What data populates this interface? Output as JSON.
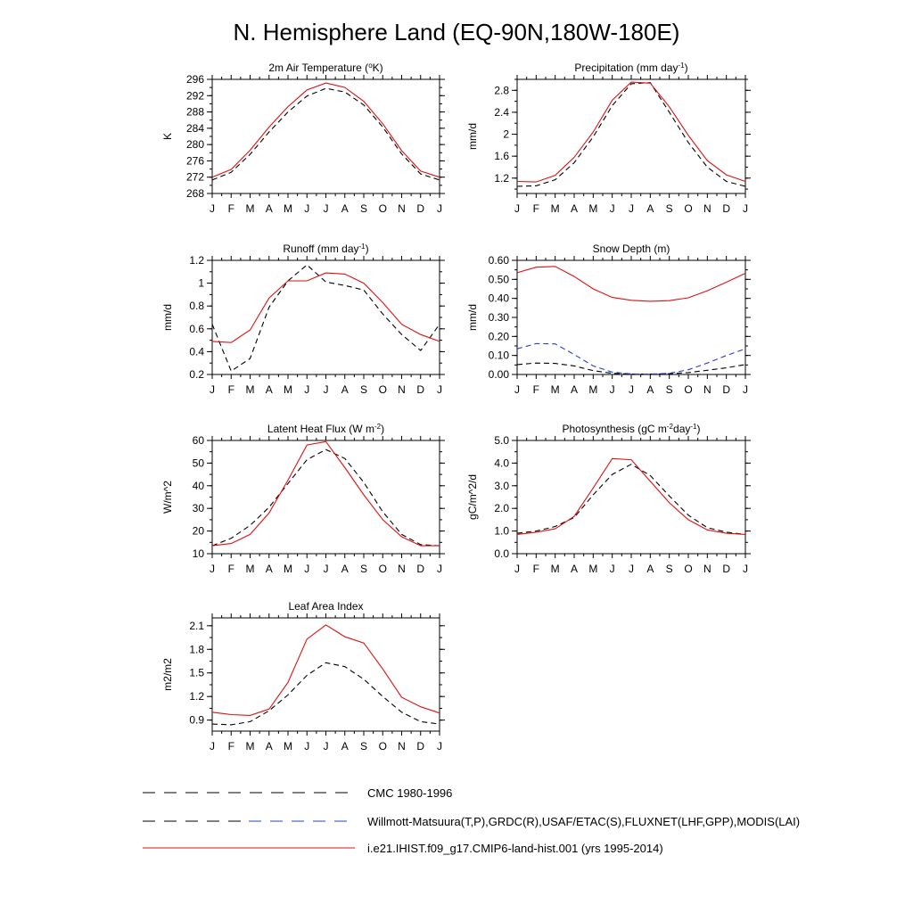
{
  "title": "N. Hemisphere Land (EQ-90N,180W-180E)",
  "months": [
    "J",
    "F",
    "M",
    "A",
    "M",
    "J",
    "J",
    "A",
    "S",
    "O",
    "N",
    "D",
    "J"
  ],
  "colors": {
    "obs": "#000000",
    "obs_secondary": "#1f3fd0",
    "model": "#e01010"
  },
  "legend": [
    {
      "label": "CMC 1980-1996",
      "style": "cmc"
    },
    {
      "label": "Willmott-Matsuura(T,P),GRDC(R),USAF/ETAC(S),FLUXNET(LHF,GPP),MODIS(LAI)",
      "style": "obs"
    },
    {
      "label": "i.e21.IHIST.f09_g17.CMIP6-land-hist.001 (yrs 1995-2014)",
      "style": "model"
    }
  ],
  "chart_data": [
    {
      "type": "line",
      "title": "2m Air Temperature (",
      "title_parts": [
        {
          "t": "2m Air Temperature ("
        },
        {
          "t": "o",
          "sup": true
        },
        {
          "t": "K)"
        }
      ],
      "ylabel": "K",
      "ylim": [
        268,
        296
      ],
      "yticks": [
        268,
        272,
        276,
        280,
        284,
        288,
        292,
        296
      ],
      "yminor": 2,
      "series": [
        {
          "style": "dash",
          "color": "obs",
          "values": [
            271.3,
            273.2,
            277.6,
            283.1,
            288.0,
            291.9,
            293.8,
            292.9,
            289.7,
            284.3,
            277.7,
            272.8,
            271.3
          ]
        },
        {
          "style": "solid",
          "color": "model",
          "values": [
            272.0,
            273.9,
            278.6,
            284.3,
            289.3,
            293.4,
            295.1,
            294.0,
            290.6,
            285.1,
            278.5,
            273.5,
            272.0
          ]
        }
      ]
    },
    {
      "type": "line",
      "title": "Precipitation (mm day",
      "title_parts": [
        {
          "t": "Precipitation (mm day"
        },
        {
          "t": "-1",
          "sup": true
        },
        {
          "t": ")"
        }
      ],
      "ylabel": "mm/d",
      "ylim": [
        0.92,
        3.0
      ],
      "yticks": [
        1.2,
        1.6,
        2.0,
        2.4,
        2.8
      ],
      "yminor": 0.2,
      "series": [
        {
          "style": "dash",
          "color": "obs",
          "values": [
            1.05,
            1.06,
            1.17,
            1.48,
            1.95,
            2.52,
            2.92,
            2.94,
            2.4,
            1.85,
            1.4,
            1.14,
            1.05
          ]
        },
        {
          "style": "solid",
          "color": "model",
          "values": [
            1.14,
            1.13,
            1.25,
            1.58,
            2.04,
            2.62,
            2.95,
            2.93,
            2.5,
            1.98,
            1.52,
            1.26,
            1.14
          ]
        }
      ]
    },
    {
      "type": "line",
      "title": "Runoff (mm day",
      "title_parts": [
        {
          "t": "Runoff (mm day"
        },
        {
          "t": "-1",
          "sup": true
        },
        {
          "t": ")"
        }
      ],
      "ylabel": "mm/d",
      "ylim": [
        0.2,
        1.2
      ],
      "yticks": [
        0.2,
        0.4,
        0.6,
        0.8,
        1.0,
        1.2
      ],
      "yminor": 0.1,
      "series": [
        {
          "style": "dash",
          "color": "obs",
          "values": [
            0.64,
            0.23,
            0.34,
            0.79,
            1.02,
            1.16,
            1.01,
            0.98,
            0.94,
            0.73,
            0.55,
            0.41,
            0.64
          ]
        },
        {
          "style": "solid",
          "color": "model",
          "values": [
            0.49,
            0.48,
            0.59,
            0.87,
            1.02,
            1.02,
            1.09,
            1.08,
            1.0,
            0.83,
            0.64,
            0.55,
            0.49
          ]
        }
      ]
    },
    {
      "type": "line",
      "title": "Snow Depth (m)",
      "title_parts": [
        {
          "t": "Snow Depth (m)"
        }
      ],
      "ylabel": "mm/d",
      "ylim": [
        0.0,
        0.6
      ],
      "yticks": [
        0.0,
        0.1,
        0.2,
        0.3,
        0.4,
        0.5,
        0.6
      ],
      "yticklabels": [
        "0.00",
        "0.10",
        "0.20",
        "0.30",
        "0.40",
        "0.50",
        "0.60"
      ],
      "yminor": 0.05,
      "series": [
        {
          "style": "dash",
          "color": "obs",
          "values": [
            0.052,
            0.06,
            0.058,
            0.045,
            0.02,
            0.006,
            0.002,
            0.002,
            0.004,
            0.01,
            0.022,
            0.035,
            0.052
          ]
        },
        {
          "style": "dash",
          "color": "obs_secondary",
          "values": [
            0.135,
            0.162,
            0.161,
            0.105,
            0.045,
            0.012,
            0.003,
            0.002,
            0.006,
            0.025,
            0.06,
            0.1,
            0.135
          ]
        },
        {
          "style": "solid",
          "color": "model",
          "values": [
            0.535,
            0.564,
            0.568,
            0.515,
            0.45,
            0.405,
            0.39,
            0.385,
            0.388,
            0.403,
            0.44,
            0.485,
            0.532
          ]
        }
      ]
    },
    {
      "type": "line",
      "title": "Latent Heat Flux (W m",
      "title_parts": [
        {
          "t": "Latent Heat Flux (W m"
        },
        {
          "t": "-2",
          "sup": true
        },
        {
          "t": ")"
        }
      ],
      "ylabel": "W/m^2",
      "ylim": [
        10,
        60
      ],
      "yticks": [
        10,
        20,
        30,
        40,
        50,
        60
      ],
      "yminor": 5,
      "series": [
        {
          "style": "dash",
          "color": "obs",
          "values": [
            13.5,
            16.8,
            22.5,
            30.5,
            41.0,
            51.5,
            56.0,
            52.0,
            41.5,
            28.5,
            18.5,
            14.0,
            13.5
          ]
        },
        {
          "style": "solid",
          "color": "model",
          "values": [
            13.5,
            14.5,
            18.5,
            28.0,
            42.5,
            58.0,
            59.5,
            48.0,
            36.0,
            25.0,
            17.5,
            13.5,
            13.5
          ]
        }
      ]
    },
    {
      "type": "line",
      "title": "Photosynthesis (gC m",
      "title_parts": [
        {
          "t": "Photosynthesis (gC m"
        },
        {
          "t": "-2",
          "sup": true
        },
        {
          "t": "day"
        },
        {
          "t": "-1",
          "sup": true
        },
        {
          "t": ")"
        }
      ],
      "ylabel": "gC/m^2/d",
      "ylim": [
        0.0,
        5.0
      ],
      "yticks": [
        0.0,
        1.0,
        2.0,
        3.0,
        4.0,
        5.0
      ],
      "yticklabels": [
        "0.0",
        "1.0",
        "2.0",
        "3.0",
        "4.0",
        "5.0"
      ],
      "yminor": 0.5,
      "series": [
        {
          "style": "dash",
          "color": "obs",
          "values": [
            0.9,
            1.0,
            1.2,
            1.6,
            2.6,
            3.5,
            3.95,
            3.45,
            2.55,
            1.7,
            1.15,
            0.95,
            0.85
          ]
        },
        {
          "style": "solid",
          "color": "model",
          "values": [
            0.85,
            0.95,
            1.1,
            1.65,
            2.9,
            4.2,
            4.15,
            3.2,
            2.25,
            1.5,
            1.05,
            0.9,
            0.85
          ]
        }
      ]
    },
    {
      "type": "line",
      "title": "Leaf Area Index",
      "title_parts": [
        {
          "t": "Leaf Area Index"
        }
      ],
      "ylabel": "m2/m2",
      "ylim": [
        0.76,
        2.2
      ],
      "yticks": [
        0.9,
        1.2,
        1.5,
        1.8,
        2.1
      ],
      "yminor": 0.15,
      "series": [
        {
          "style": "dash",
          "color": "obs",
          "values": [
            0.85,
            0.84,
            0.88,
            1.02,
            1.22,
            1.47,
            1.63,
            1.58,
            1.42,
            1.2,
            1.0,
            0.88,
            0.85
          ]
        },
        {
          "style": "solid",
          "color": "model",
          "values": [
            1.0,
            0.97,
            0.96,
            1.04,
            1.38,
            1.93,
            2.11,
            1.96,
            1.88,
            1.55,
            1.19,
            1.07,
            0.99
          ]
        }
      ]
    }
  ]
}
